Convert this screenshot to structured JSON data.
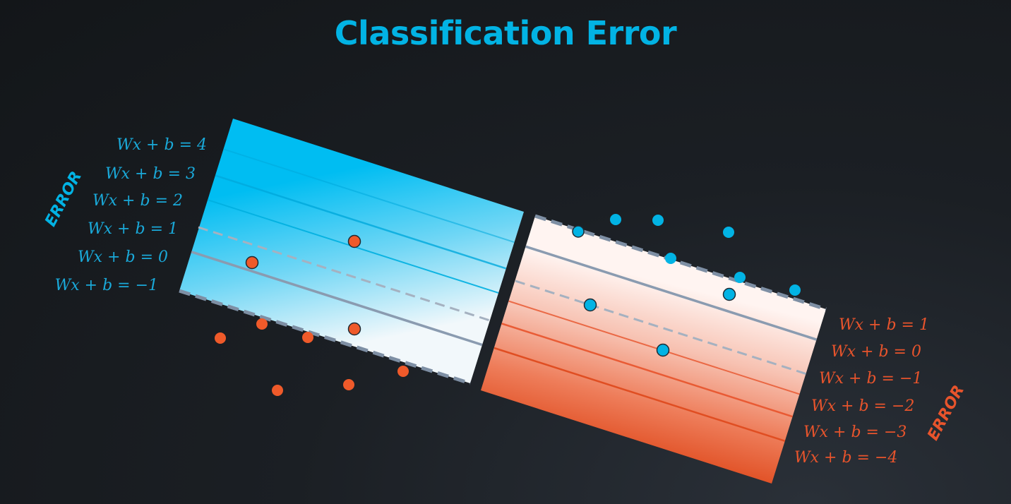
{
  "title": "Classification Error",
  "colors": {
    "blue": "#02b3e4",
    "red": "#e8542c",
    "dashed_boundary": "#8a9bb0"
  },
  "left_panel": {
    "error_label": "ERROR",
    "equations": [
      "Wx + b = 4",
      "Wx + b = 3",
      "Wx + b = 2",
      "Wx + b = 1",
      "Wx + b = 0",
      "Wx + b = −1"
    ]
  },
  "right_panel": {
    "error_label": "ERROR",
    "equations": [
      "Wx + b = 1",
      "Wx + b = 0",
      "Wx + b = −1",
      "Wx + b = −2",
      "Wx + b = −3",
      "Wx + b = −4"
    ]
  }
}
